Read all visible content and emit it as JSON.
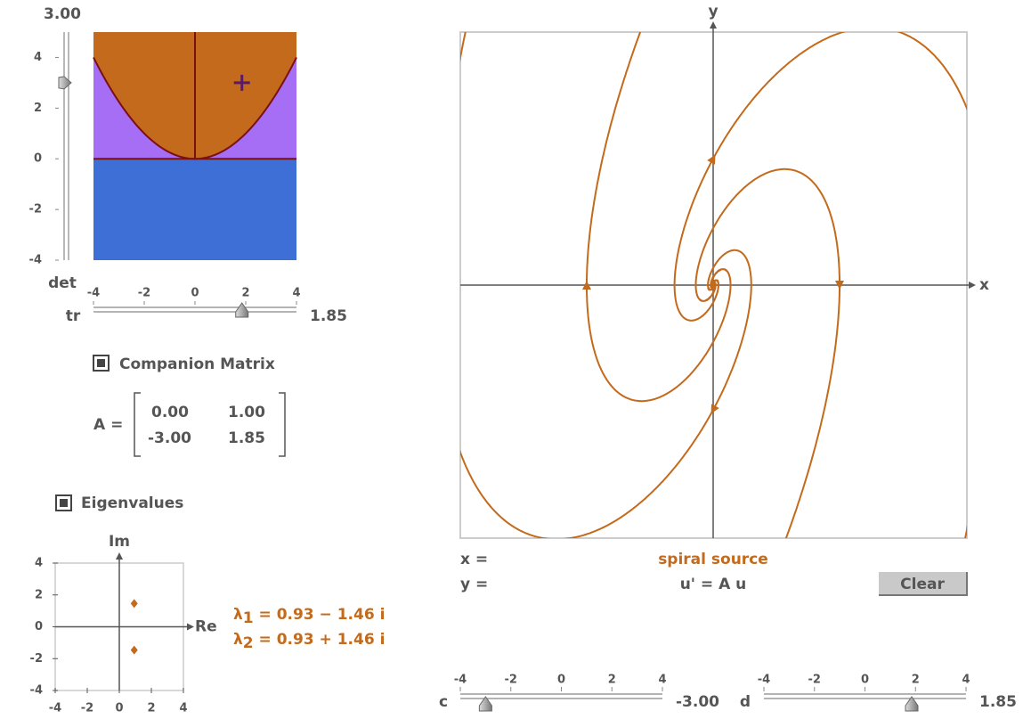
{
  "trace_det_plot": {
    "xlim": [
      -4,
      4
    ],
    "ylim": [
      -4,
      5
    ],
    "det_slider": {
      "name": "det",
      "value": 3,
      "label": "3.00",
      "ticks": [
        4,
        2,
        0,
        -2,
        -4
      ]
    },
    "tr_slider": {
      "name": "tr",
      "value": 1.85,
      "label": "1.85",
      "ticks": [
        -4,
        -2,
        0,
        2,
        4
      ]
    },
    "colors": {
      "negative_det": "#3d6fd6",
      "below_parabola": "#a56ef5",
      "above_parabola": "#c46a1c",
      "lines": "#7a1010",
      "marker": "#5a1a6a"
    }
  },
  "companion_matrix": {
    "checkbox": "Companion Matrix",
    "lhs": "A =",
    "rows": [
      [
        {
          "value": 0,
          "label": "0.00"
        },
        {
          "value": 1,
          "label": "1.00"
        }
      ],
      [
        {
          "value": -3,
          "label": "-3.00"
        },
        {
          "value": 1.85,
          "label": "1.85"
        }
      ]
    ]
  },
  "eigenvalues": {
    "checkbox": "Eigenvalues",
    "x_label": "Re",
    "y_label": "Im",
    "xlim": [
      -4,
      4
    ],
    "ylim": [
      -4,
      4
    ],
    "xticks": [
      -4,
      -2,
      0,
      2,
      4
    ],
    "yticks": [
      4,
      2,
      0,
      -2,
      -4
    ],
    "color": "#c46a1c",
    "points": [
      {
        "re": 0.93,
        "im": -1.46,
        "symbol": "λ",
        "index": "1",
        "text": " = 0.93 − 1.46 i"
      },
      {
        "re": 0.93,
        "im": 1.46,
        "symbol": "λ",
        "index": "2",
        "text": " = 0.93 + 1.46 i"
      }
    ]
  },
  "phase_plane": {
    "x_label": "x",
    "y_label": "y",
    "x_readout": "x =",
    "y_readout": "y =",
    "classification": "spiral source",
    "equation": "u' = A u",
    "button": "Clear",
    "color": "#c46a1c"
  },
  "c_slider": {
    "name": "c",
    "value": -3,
    "label": "-3.00",
    "ticks": [
      -4,
      -2,
      0,
      2,
      4
    ]
  },
  "d_slider": {
    "name": "d",
    "value": 1.85,
    "label": "1.85",
    "ticks": [
      -4,
      -2,
      0,
      2,
      4
    ]
  }
}
